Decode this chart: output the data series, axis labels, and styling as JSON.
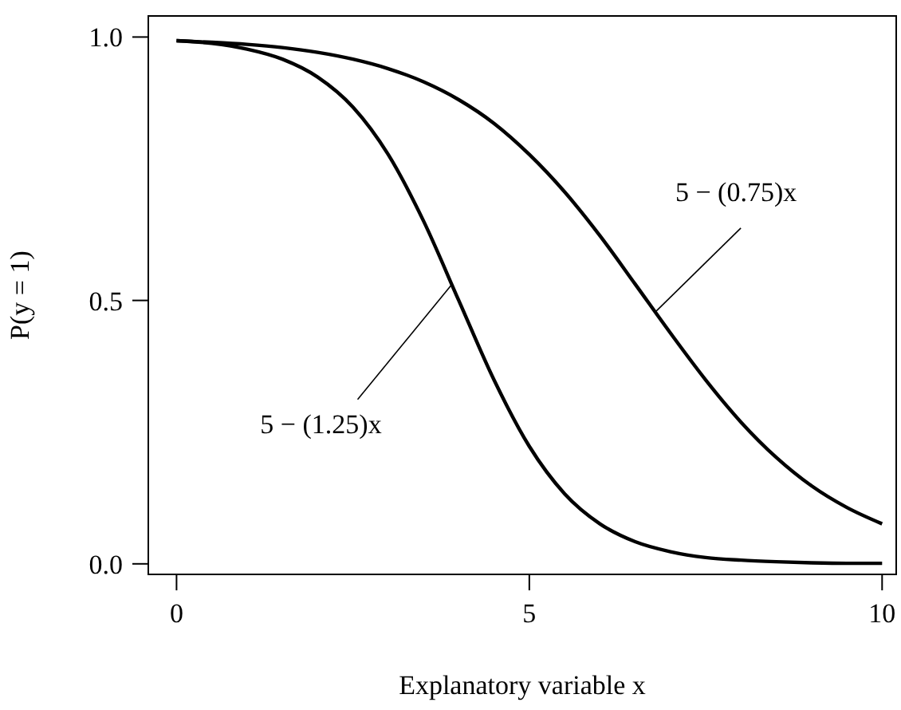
{
  "chart_data": {
    "type": "line",
    "xlabel": "Explanatory variable x",
    "ylabel": "P(y = 1)",
    "x": [
      0,
      0.5,
      1,
      1.5,
      2,
      2.5,
      3,
      3.5,
      4,
      4.5,
      5,
      5.5,
      6,
      6.5,
      7,
      7.5,
      8,
      8.5,
      9,
      9.5,
      10
    ],
    "series": [
      {
        "color": "#000000",
        "values": [
          0.993,
          0.99,
          0.986,
          0.98,
          0.971,
          0.958,
          0.94,
          0.915,
          0.881,
          0.836,
          0.777,
          0.706,
          0.623,
          0.531,
          0.438,
          0.349,
          0.269,
          0.202,
          0.148,
          0.107,
          0.076
        ]
      },
      {
        "color": "#000000",
        "values": [
          0.993,
          0.988,
          0.977,
          0.958,
          0.924,
          0.867,
          0.777,
          0.651,
          0.5,
          0.349,
          0.223,
          0.133,
          0.076,
          0.042,
          0.023,
          0.012,
          0.007,
          0.004,
          0.002,
          0.001,
          0.001
        ]
      }
    ],
    "xlim": [
      -0.4,
      10.2
    ],
    "xticks": [
      0,
      5,
      10
    ],
    "ylim": [
      -0.02,
      1.04
    ],
    "yticks": [
      {
        "value": 0,
        "label": "0.0"
      },
      {
        "value": 0.5,
        "label": "0.5"
      },
      {
        "value": 1,
        "label": "1.0"
      }
    ],
    "marker": "none",
    "line_style": "solid",
    "annotations": [
      {
        "text": "5 − (0.75)x",
        "x": 6.8,
        "y": 0.48
      },
      {
        "text": "5 − (1.25)x",
        "x": 3.9,
        "y": 0.53
      }
    ]
  }
}
